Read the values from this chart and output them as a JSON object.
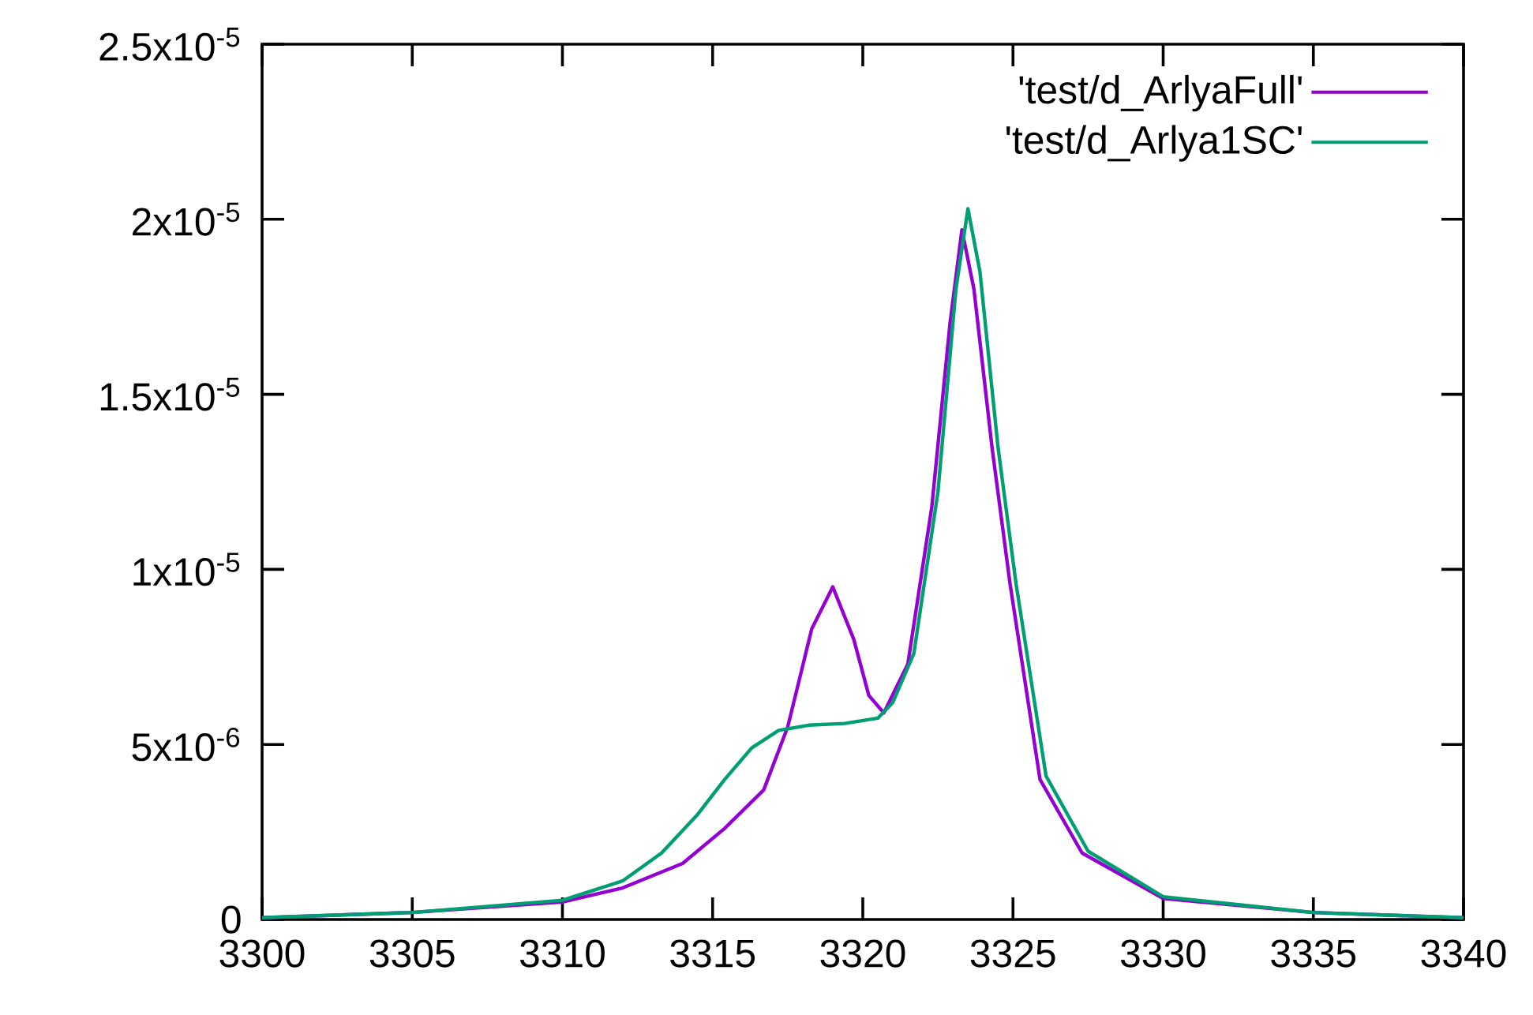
{
  "chart_data": {
    "type": "line",
    "xlim": [
      3300,
      3340
    ],
    "xticks": [
      3300,
      3305,
      3310,
      3315,
      3320,
      3325,
      3330,
      3335,
      3340
    ],
    "ylim": [
      0,
      2.5e-05
    ],
    "yticks": [
      0,
      {
        "value": 5e-06,
        "label": "5x10$^{-6}$"
      },
      {
        "value": 1e-05,
        "label": "1x10$^{-5}$"
      },
      {
        "value": 1.5e-05,
        "label": "1.5x10$^{-5}$"
      },
      {
        "value": 2e-05,
        "label": "2x10$^{-5}$"
      },
      {
        "value": 2.5e-05,
        "label": "2.5x10$^{-5}$"
      }
    ],
    "legend": "top right",
    "grid": false,
    "marker": "none",
    "line_style": "solid",
    "series": [
      {
        "name": "'test/d_ArlyaFull'",
        "color": "#9400d3",
        "x": [
          3300,
          3305,
          3310,
          3312,
          3314,
          3315.4,
          3316.7,
          3317.5,
          3318.3,
          3319.0,
          3319.7,
          3320.2,
          3320.7,
          3321.5,
          3322.3,
          3322.9,
          3323.3,
          3323.7,
          3324.3,
          3324.9,
          3325.9,
          3327.3,
          3330,
          3335,
          3340
        ],
        "values": [
          5e-08,
          2e-07,
          5e-07,
          9e-07,
          1.6e-06,
          2.6e-06,
          3.7e-06,
          5.5e-06,
          8.3e-06,
          9.5e-06,
          8e-06,
          6.4e-06,
          5.9e-06,
          7.3e-06,
          1.18e-05,
          1.7e-05,
          1.97e-05,
          1.8e-05,
          1.35e-05,
          9.6e-06,
          4e-06,
          1.9e-06,
          6e-07,
          2e-07,
          5e-08
        ]
      },
      {
        "name": "'test/d_Arlya1SC'",
        "color": "#009e73",
        "x": [
          3300,
          3305,
          3310,
          3312,
          3313.3,
          3314.5,
          3315.4,
          3316.3,
          3317.2,
          3318.2,
          3319.4,
          3320.5,
          3321.0,
          3321.7,
          3322.5,
          3323.1,
          3323.5,
          3323.9,
          3324.5,
          3325.1,
          3326.1,
          3327.5,
          3330,
          3335,
          3340
        ],
        "values": [
          5e-08,
          2e-07,
          5.5e-07,
          1.1e-06,
          1.9e-06,
          3e-06,
          4e-06,
          4.9e-06,
          5.4e-06,
          5.55e-06,
          5.6e-06,
          5.75e-06,
          6.2e-06,
          7.6e-06,
          1.22e-05,
          1.8e-05,
          2.03e-05,
          1.85e-05,
          1.35e-05,
          9.6e-06,
          4.1e-06,
          1.95e-06,
          6.5e-07,
          2e-07,
          5e-08
        ]
      }
    ]
  }
}
